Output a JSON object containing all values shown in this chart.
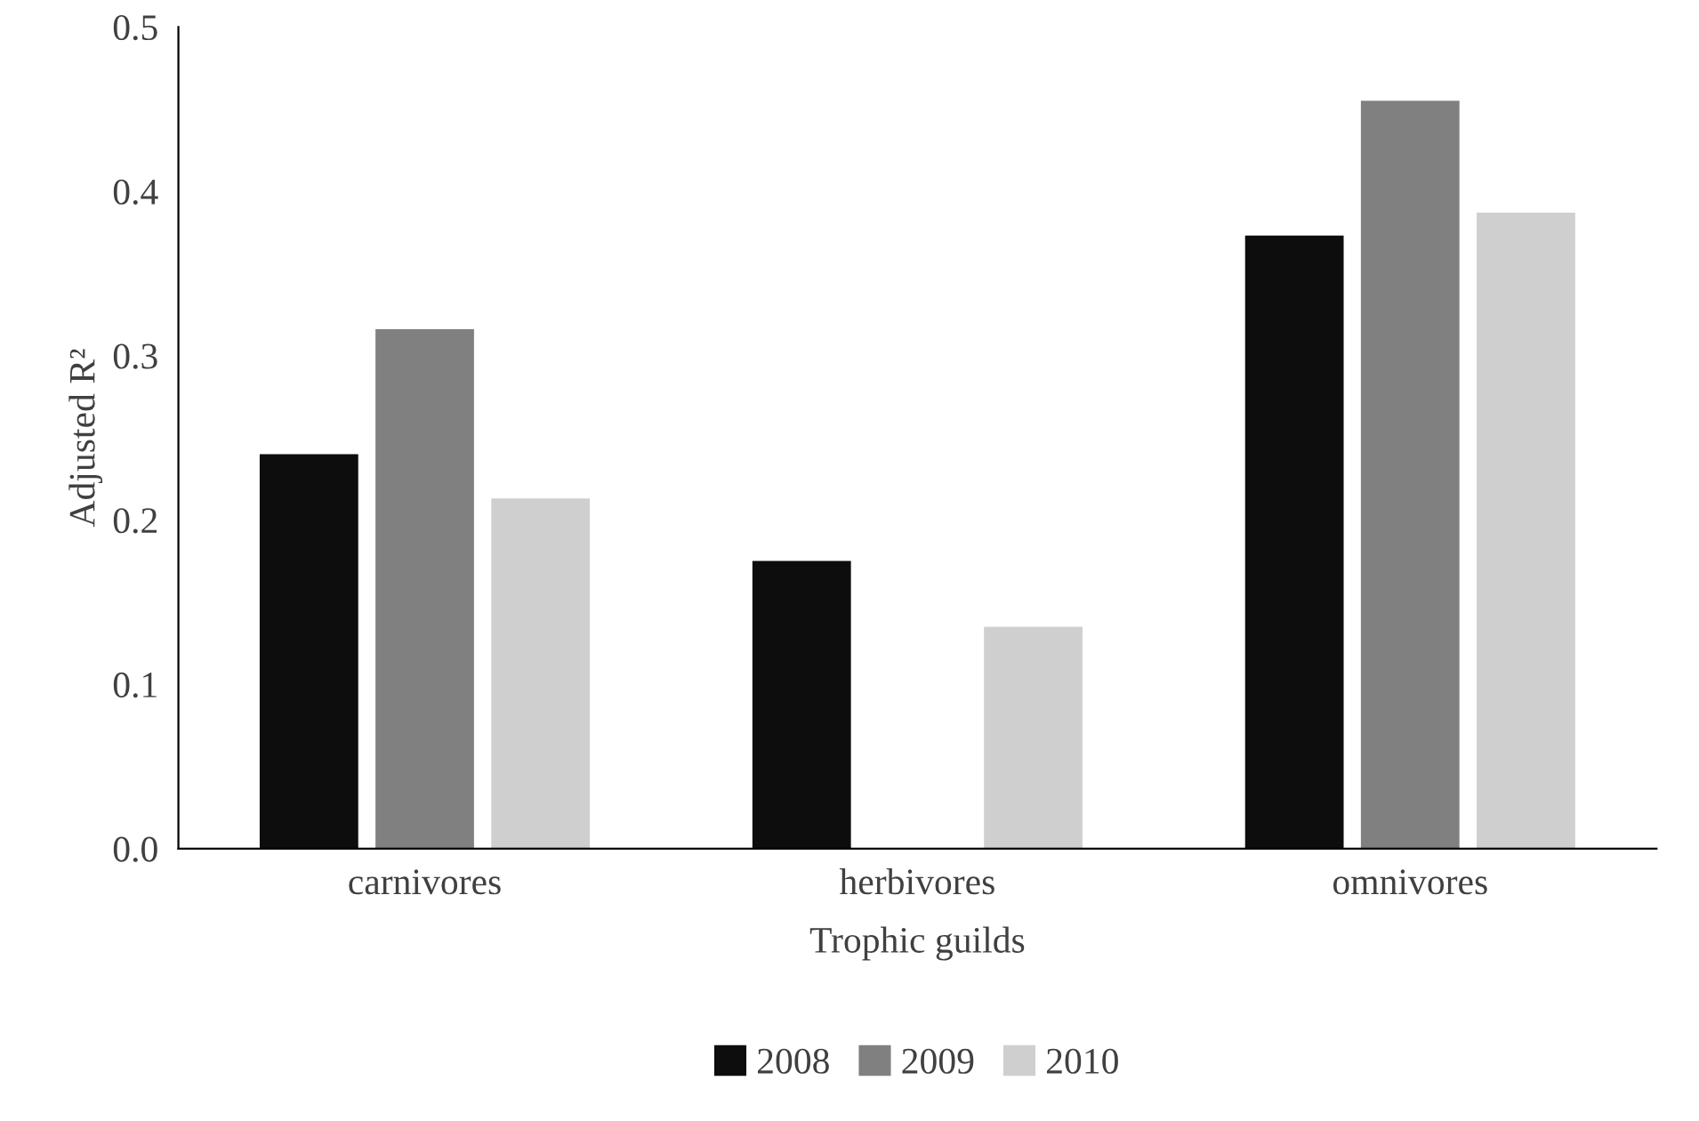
{
  "chart_data": {
    "type": "bar",
    "xlabel": "Trophic guilds",
    "ylabel": "Adjusted R²",
    "categories": [
      "carnivores",
      "herbivores",
      "omnivores"
    ],
    "series": [
      {
        "name": "2008",
        "color": "#0d0d0d",
        "values": [
          0.24,
          0.175,
          0.373
        ]
      },
      {
        "name": "2009",
        "color": "#808080",
        "values": [
          0.316,
          null,
          0.455
        ]
      },
      {
        "name": "2010",
        "color": "#d0cfd0",
        "values": [
          0.213,
          0.135,
          0.387
        ]
      }
    ],
    "ylim": [
      0,
      0.5
    ],
    "yticks": [
      {
        "value": 0,
        "label": "0.0"
      },
      0.1,
      0.2,
      0.3,
      0.4,
      0.5
    ],
    "grid": false,
    "legend": "bottom"
  }
}
